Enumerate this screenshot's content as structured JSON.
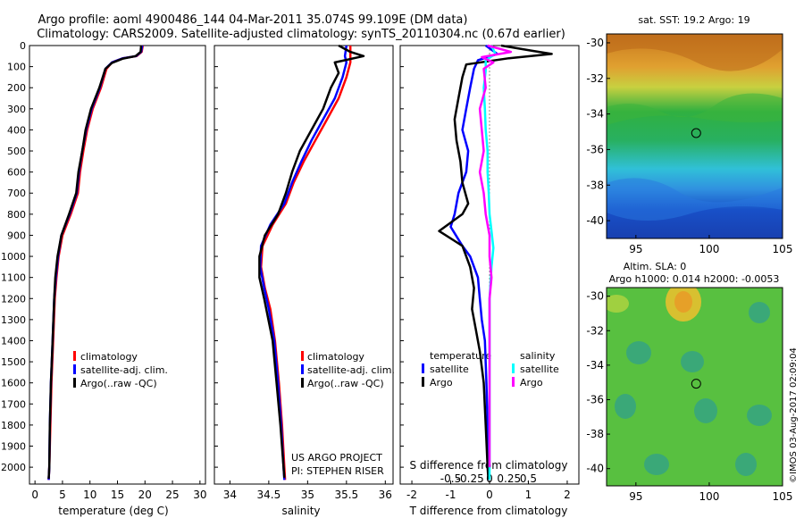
{
  "header": {
    "title_line1": "Argo profile: aoml 4900486_144 04-Mar-2011 35.074S 99.109E (DM data)",
    "title_line2": "Climatology: CARS2009. Satellite-adjusted climatology: synTS_20110304.nc (0.67d earlier)"
  },
  "side_label": "©IMOS 03-Aug-2017 02:09:04",
  "colors": {
    "climatology": "#ff0000",
    "satellite": "#0000ff",
    "argo": "#000000",
    "sat_salinity": "#00ffff",
    "argo_salinity": "#ff00ff"
  },
  "chart_data": [
    {
      "type": "line",
      "id": "temperature",
      "xlabel": "temperature (deg C)",
      "xlim": [
        -1,
        31
      ],
      "ylim": [
        2080,
        0
      ],
      "xticks": [
        0,
        5,
        10,
        15,
        20,
        25,
        30
      ],
      "yticks": [
        0,
        100,
        200,
        300,
        400,
        500,
        600,
        700,
        800,
        900,
        1000,
        1100,
        1200,
        1300,
        1400,
        1500,
        1600,
        1700,
        1800,
        1900,
        2000
      ],
      "legend": [
        "climatology",
        "satellite-adj. clim.",
        "Argo(..raw -QC)"
      ],
      "series": [
        {
          "name": "climatology",
          "color": "#ff0000",
          "points": [
            [
              19.6,
              0
            ],
            [
              19.4,
              30
            ],
            [
              18.5,
              50
            ],
            [
              16,
              60
            ],
            [
              14,
              80
            ],
            [
              13,
              110
            ],
            [
              12,
              200
            ],
            [
              10.5,
              300
            ],
            [
              9.5,
              400
            ],
            [
              8.8,
              500
            ],
            [
              8.2,
              600
            ],
            [
              7.8,
              700
            ],
            [
              6.5,
              800
            ],
            [
              5,
              900
            ],
            [
              4.3,
              1000
            ],
            [
              3.9,
              1100
            ],
            [
              3.6,
              1200
            ],
            [
              3.3,
              1400
            ],
            [
              3.0,
              1600
            ],
            [
              2.8,
              1800
            ],
            [
              2.6,
              2000
            ],
            [
              2.5,
              2060
            ]
          ]
        },
        {
          "name": "satellite-adj. clim.",
          "color": "#0000ff",
          "points": [
            [
              19.5,
              0
            ],
            [
              19.3,
              30
            ],
            [
              18.4,
              50
            ],
            [
              16,
              60
            ],
            [
              14,
              80
            ],
            [
              12.8,
              110
            ],
            [
              11.8,
              200
            ],
            [
              10.3,
              300
            ],
            [
              9.3,
              400
            ],
            [
              8.6,
              500
            ],
            [
              8,
              600
            ],
            [
              7.6,
              700
            ],
            [
              6.3,
              800
            ],
            [
              4.8,
              900
            ],
            [
              4.2,
              1000
            ],
            [
              3.8,
              1100
            ],
            [
              3.5,
              1200
            ],
            [
              3.2,
              1400
            ],
            [
              2.9,
              1600
            ],
            [
              2.7,
              1800
            ],
            [
              2.6,
              2000
            ],
            [
              2.5,
              2060
            ]
          ]
        },
        {
          "name": "Argo(..raw -QC)",
          "color": "#000000",
          "points": [
            [
              19.3,
              0
            ],
            [
              19.2,
              30
            ],
            [
              18.3,
              50
            ],
            [
              16,
              62
            ],
            [
              14,
              82
            ],
            [
              12.8,
              110
            ],
            [
              11.7,
              200
            ],
            [
              10.2,
              300
            ],
            [
              9.2,
              400
            ],
            [
              8.6,
              500
            ],
            [
              7.9,
              600
            ],
            [
              7.5,
              700
            ],
            [
              6.2,
              800
            ],
            [
              4.8,
              900
            ],
            [
              4.1,
              1000
            ],
            [
              3.7,
              1100
            ],
            [
              3.5,
              1200
            ],
            [
              3.2,
              1400
            ],
            [
              2.9,
              1600
            ],
            [
              2.7,
              1800
            ],
            [
              2.6,
              2000
            ],
            [
              2.5,
              2055
            ]
          ]
        }
      ]
    },
    {
      "type": "line",
      "id": "salinity",
      "xlabel": "salinity",
      "xlim": [
        33.8,
        36.1
      ],
      "ylim": [
        2080,
        0
      ],
      "xticks": [
        34,
        34.5,
        35,
        35.5,
        36
      ],
      "legend": [
        "climatology",
        "satellite-adj. clim.",
        "Argo(..raw -QC)"
      ],
      "annotation": [
        "US ARGO PROJECT",
        "PI: STEPHEN RISER"
      ],
      "series": [
        {
          "name": "climatology",
          "color": "#ff0000",
          "points": [
            [
              35.55,
              0
            ],
            [
              35.55,
              50
            ],
            [
              35.55,
              80
            ],
            [
              35.5,
              150
            ],
            [
              35.4,
              250
            ],
            [
              35.25,
              350
            ],
            [
              35.1,
              450
            ],
            [
              34.95,
              550
            ],
            [
              34.82,
              650
            ],
            [
              34.72,
              750
            ],
            [
              34.55,
              850
            ],
            [
              34.42,
              950
            ],
            [
              34.4,
              1050
            ],
            [
              34.45,
              1150
            ],
            [
              34.52,
              1250
            ],
            [
              34.58,
              1400
            ],
            [
              34.63,
              1600
            ],
            [
              34.67,
              1800
            ],
            [
              34.7,
              2000
            ],
            [
              34.71,
              2060
            ]
          ]
        },
        {
          "name": "satellite-adj. clim.",
          "color": "#0000ff",
          "points": [
            [
              35.5,
              0
            ],
            [
              35.48,
              50
            ],
            [
              35.5,
              80
            ],
            [
              35.45,
              150
            ],
            [
              35.35,
              250
            ],
            [
              35.2,
              350
            ],
            [
              35.05,
              450
            ],
            [
              34.92,
              550
            ],
            [
              34.8,
              650
            ],
            [
              34.7,
              750
            ],
            [
              34.52,
              850
            ],
            [
              34.4,
              950
            ],
            [
              34.39,
              1050
            ],
            [
              34.44,
              1150
            ],
            [
              34.5,
              1250
            ],
            [
              34.57,
              1400
            ],
            [
              34.62,
              1600
            ],
            [
              34.66,
              1800
            ],
            [
              34.69,
              2000
            ],
            [
              34.7,
              2060
            ]
          ]
        },
        {
          "name": "Argo(..raw -QC)",
          "color": "#000000",
          "points": [
            [
              35.4,
              0
            ],
            [
              35.55,
              30
            ],
            [
              35.72,
              50
            ],
            [
              35.35,
              80
            ],
            [
              35.4,
              130
            ],
            [
              35.3,
              200
            ],
            [
              35.2,
              300
            ],
            [
              35.05,
              400
            ],
            [
              34.9,
              500
            ],
            [
              34.8,
              600
            ],
            [
              34.72,
              700
            ],
            [
              34.62,
              800
            ],
            [
              34.45,
              900
            ],
            [
              34.38,
              1000
            ],
            [
              34.38,
              1100
            ],
            [
              34.44,
              1200
            ],
            [
              34.55,
              1400
            ],
            [
              34.6,
              1600
            ],
            [
              34.65,
              1800
            ],
            [
              34.69,
              2000
            ],
            [
              34.7,
              2050
            ]
          ]
        }
      ]
    },
    {
      "type": "line",
      "id": "difference",
      "xlabel": "T difference from climatology",
      "secondary_xlabel": "S difference from climatology",
      "xlim": [
        -2.3,
        2.3
      ],
      "ylim": [
        2080,
        0
      ],
      "xticks": [
        -2,
        -1,
        0,
        1,
        2
      ],
      "secondary_xticks": [
        -0.5,
        -0.25,
        0,
        0.25,
        0.5
      ],
      "legend_groups": [
        {
          "title": "temperature",
          "items": [
            "satellite",
            "Argo"
          ]
        },
        {
          "title": "salinity",
          "items": [
            "satellite",
            "Argo"
          ]
        }
      ],
      "series": [
        {
          "name": "temperature satellite",
          "color": "#0000ff",
          "points": [
            [
              -0.1,
              0
            ],
            [
              0.2,
              40
            ],
            [
              -0.3,
              70
            ],
            [
              -0.4,
              110
            ],
            [
              -0.5,
              200
            ],
            [
              -0.6,
              300
            ],
            [
              -0.7,
              400
            ],
            [
              -0.55,
              500
            ],
            [
              -0.6,
              600
            ],
            [
              -0.8,
              700
            ],
            [
              -0.9,
              800
            ],
            [
              -1.0,
              860
            ],
            [
              -0.7,
              950
            ],
            [
              -0.5,
              1000
            ],
            [
              -0.3,
              1100
            ],
            [
              -0.25,
              1200
            ],
            [
              -0.2,
              1300
            ],
            [
              -0.12,
              1400
            ],
            [
              -0.08,
              1600
            ],
            [
              -0.05,
              1800
            ],
            [
              -0.03,
              2000
            ],
            [
              -0.02,
              2060
            ]
          ]
        },
        {
          "name": "temperature Argo",
          "color": "#000000",
          "points": [
            [
              0.3,
              0
            ],
            [
              1.1,
              25
            ],
            [
              1.6,
              40
            ],
            [
              0.5,
              60
            ],
            [
              -0.6,
              90
            ],
            [
              -0.7,
              150
            ],
            [
              -0.8,
              250
            ],
            [
              -0.9,
              350
            ],
            [
              -0.85,
              450
            ],
            [
              -0.75,
              550
            ],
            [
              -0.7,
              650
            ],
            [
              -0.55,
              750
            ],
            [
              -0.7,
              800
            ],
            [
              -1.3,
              880
            ],
            [
              -0.7,
              950
            ],
            [
              -0.5,
              1050
            ],
            [
              -0.4,
              1150
            ],
            [
              -0.45,
              1250
            ],
            [
              -0.35,
              1350
            ],
            [
              -0.25,
              1450
            ],
            [
              -0.15,
              1600
            ],
            [
              -0.1,
              1800
            ],
            [
              -0.05,
              2000
            ],
            [
              -0.03,
              2060
            ]
          ]
        },
        {
          "name": "salinity satellite",
          "color": "#00ffff",
          "points": [
            [
              0.05,
              0
            ],
            [
              0.15,
              40
            ],
            [
              -0.1,
              70
            ],
            [
              -0.1,
              120
            ],
            [
              -0.15,
              200
            ],
            [
              -0.12,
              300
            ],
            [
              -0.1,
              400
            ],
            [
              -0.05,
              500
            ],
            [
              -0.05,
              600
            ],
            [
              -0.02,
              700
            ],
            [
              0,
              800
            ],
            [
              0.05,
              880
            ],
            [
              0.1,
              960
            ],
            [
              0.05,
              1050
            ],
            [
              0,
              1200
            ],
            [
              0,
              1400
            ],
            [
              0,
              1600
            ],
            [
              0,
              1800
            ],
            [
              0,
              2000
            ],
            [
              0,
              2060
            ]
          ]
        },
        {
          "name": "salinity Argo",
          "color": "#ff00ff",
          "points": [
            [
              -0.05,
              0
            ],
            [
              0.55,
              30
            ],
            [
              -0.2,
              55
            ],
            [
              0.1,
              80
            ],
            [
              -0.15,
              110
            ],
            [
              -0.1,
              200
            ],
            [
              -0.25,
              300
            ],
            [
              -0.2,
              400
            ],
            [
              -0.15,
              500
            ],
            [
              -0.25,
              600
            ],
            [
              -0.15,
              700
            ],
            [
              -0.1,
              800
            ],
            [
              -0.05,
              850
            ],
            [
              0,
              900
            ],
            [
              0,
              1000
            ],
            [
              0.05,
              1100
            ],
            [
              0,
              1200
            ],
            [
              0,
              1300
            ],
            [
              0,
              2000
            ]
          ]
        }
      ]
    },
    {
      "type": "heatmap",
      "id": "sst_map",
      "title": "sat. SST: 19.2 Argo: 19",
      "xlim": [
        93,
        105
      ],
      "ylim": [
        -41,
        -29.5
      ],
      "xticks": [
        95,
        100,
        105
      ],
      "yticks": [
        -30,
        -32,
        -34,
        -36,
        -38,
        -40
      ],
      "marker": {
        "lon": 99.109,
        "lat": -35.074
      }
    },
    {
      "type": "heatmap",
      "id": "sla_map",
      "title_line1": "Altim. SLA: 0",
      "title_line2": "Argo h1000: 0.014 h2000: -0.0053",
      "xlim": [
        93,
        105
      ],
      "ylim": [
        -41,
        -29.5
      ],
      "xticks": [
        95,
        100,
        105
      ],
      "yticks": [
        -30,
        -32,
        -34,
        -36,
        -38,
        -40
      ],
      "marker": {
        "lon": 99.109,
        "lat": -35.074
      }
    }
  ]
}
